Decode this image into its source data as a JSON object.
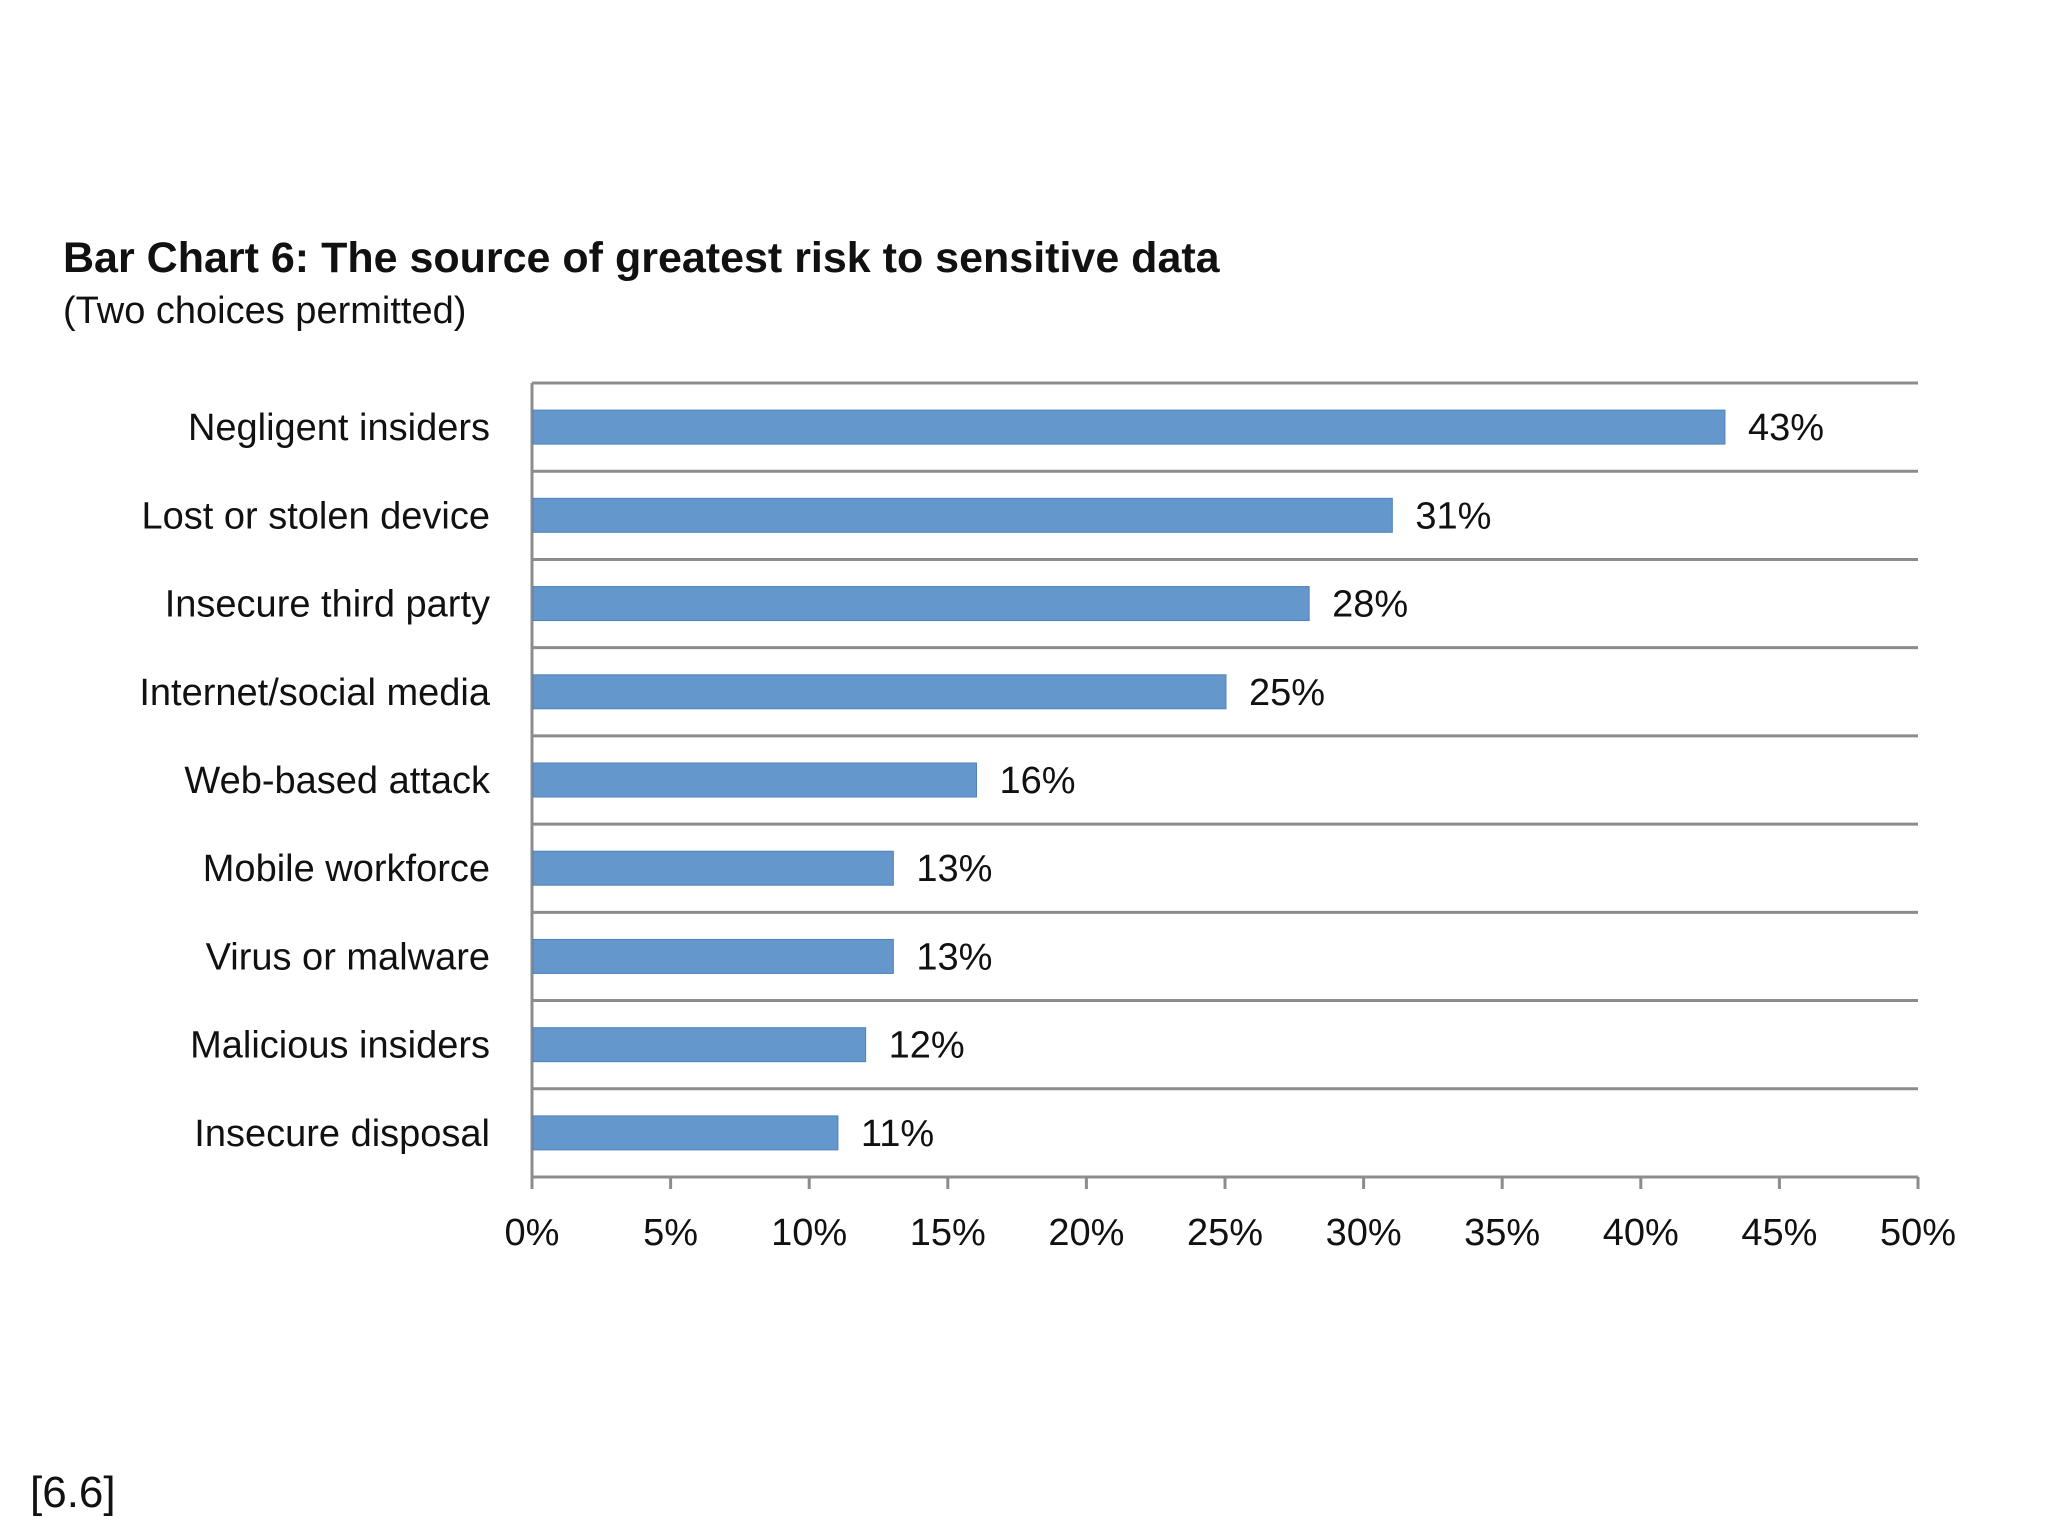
{
  "footer": {
    "reference": "[6.6]"
  },
  "chart_data": {
    "type": "bar",
    "orientation": "horizontal",
    "title": "Bar Chart 6: The source of greatest risk to sensitive data",
    "subtitle": "(Two choices permitted)",
    "xlabel": "",
    "ylabel": "",
    "xlim": [
      0,
      50
    ],
    "tick_values": [
      0,
      5,
      10,
      15,
      20,
      25,
      30,
      35,
      40,
      45,
      50
    ],
    "tick_labels": [
      "0%",
      "5%",
      "10%",
      "15%",
      "20%",
      "25%",
      "30%",
      "35%",
      "40%",
      "45%",
      "50%"
    ],
    "categories": [
      "Negligent insiders",
      "Lost or stolen device",
      "Insecure third party",
      "Internet/social media",
      "Web-based attack",
      "Mobile workforce",
      "Virus or malware",
      "Malicious insiders",
      "Insecure disposal"
    ],
    "values": [
      43,
      31,
      28,
      25,
      16,
      13,
      13,
      12,
      11
    ],
    "value_labels": [
      "43%",
      "31%",
      "28%",
      "25%",
      "16%",
      "13%",
      "13%",
      "12%",
      "11%"
    ],
    "grid": true,
    "legend": "none",
    "colors": {
      "bar": "#6497cc",
      "grid": "#8c8c8c",
      "text": "#111111"
    }
  }
}
